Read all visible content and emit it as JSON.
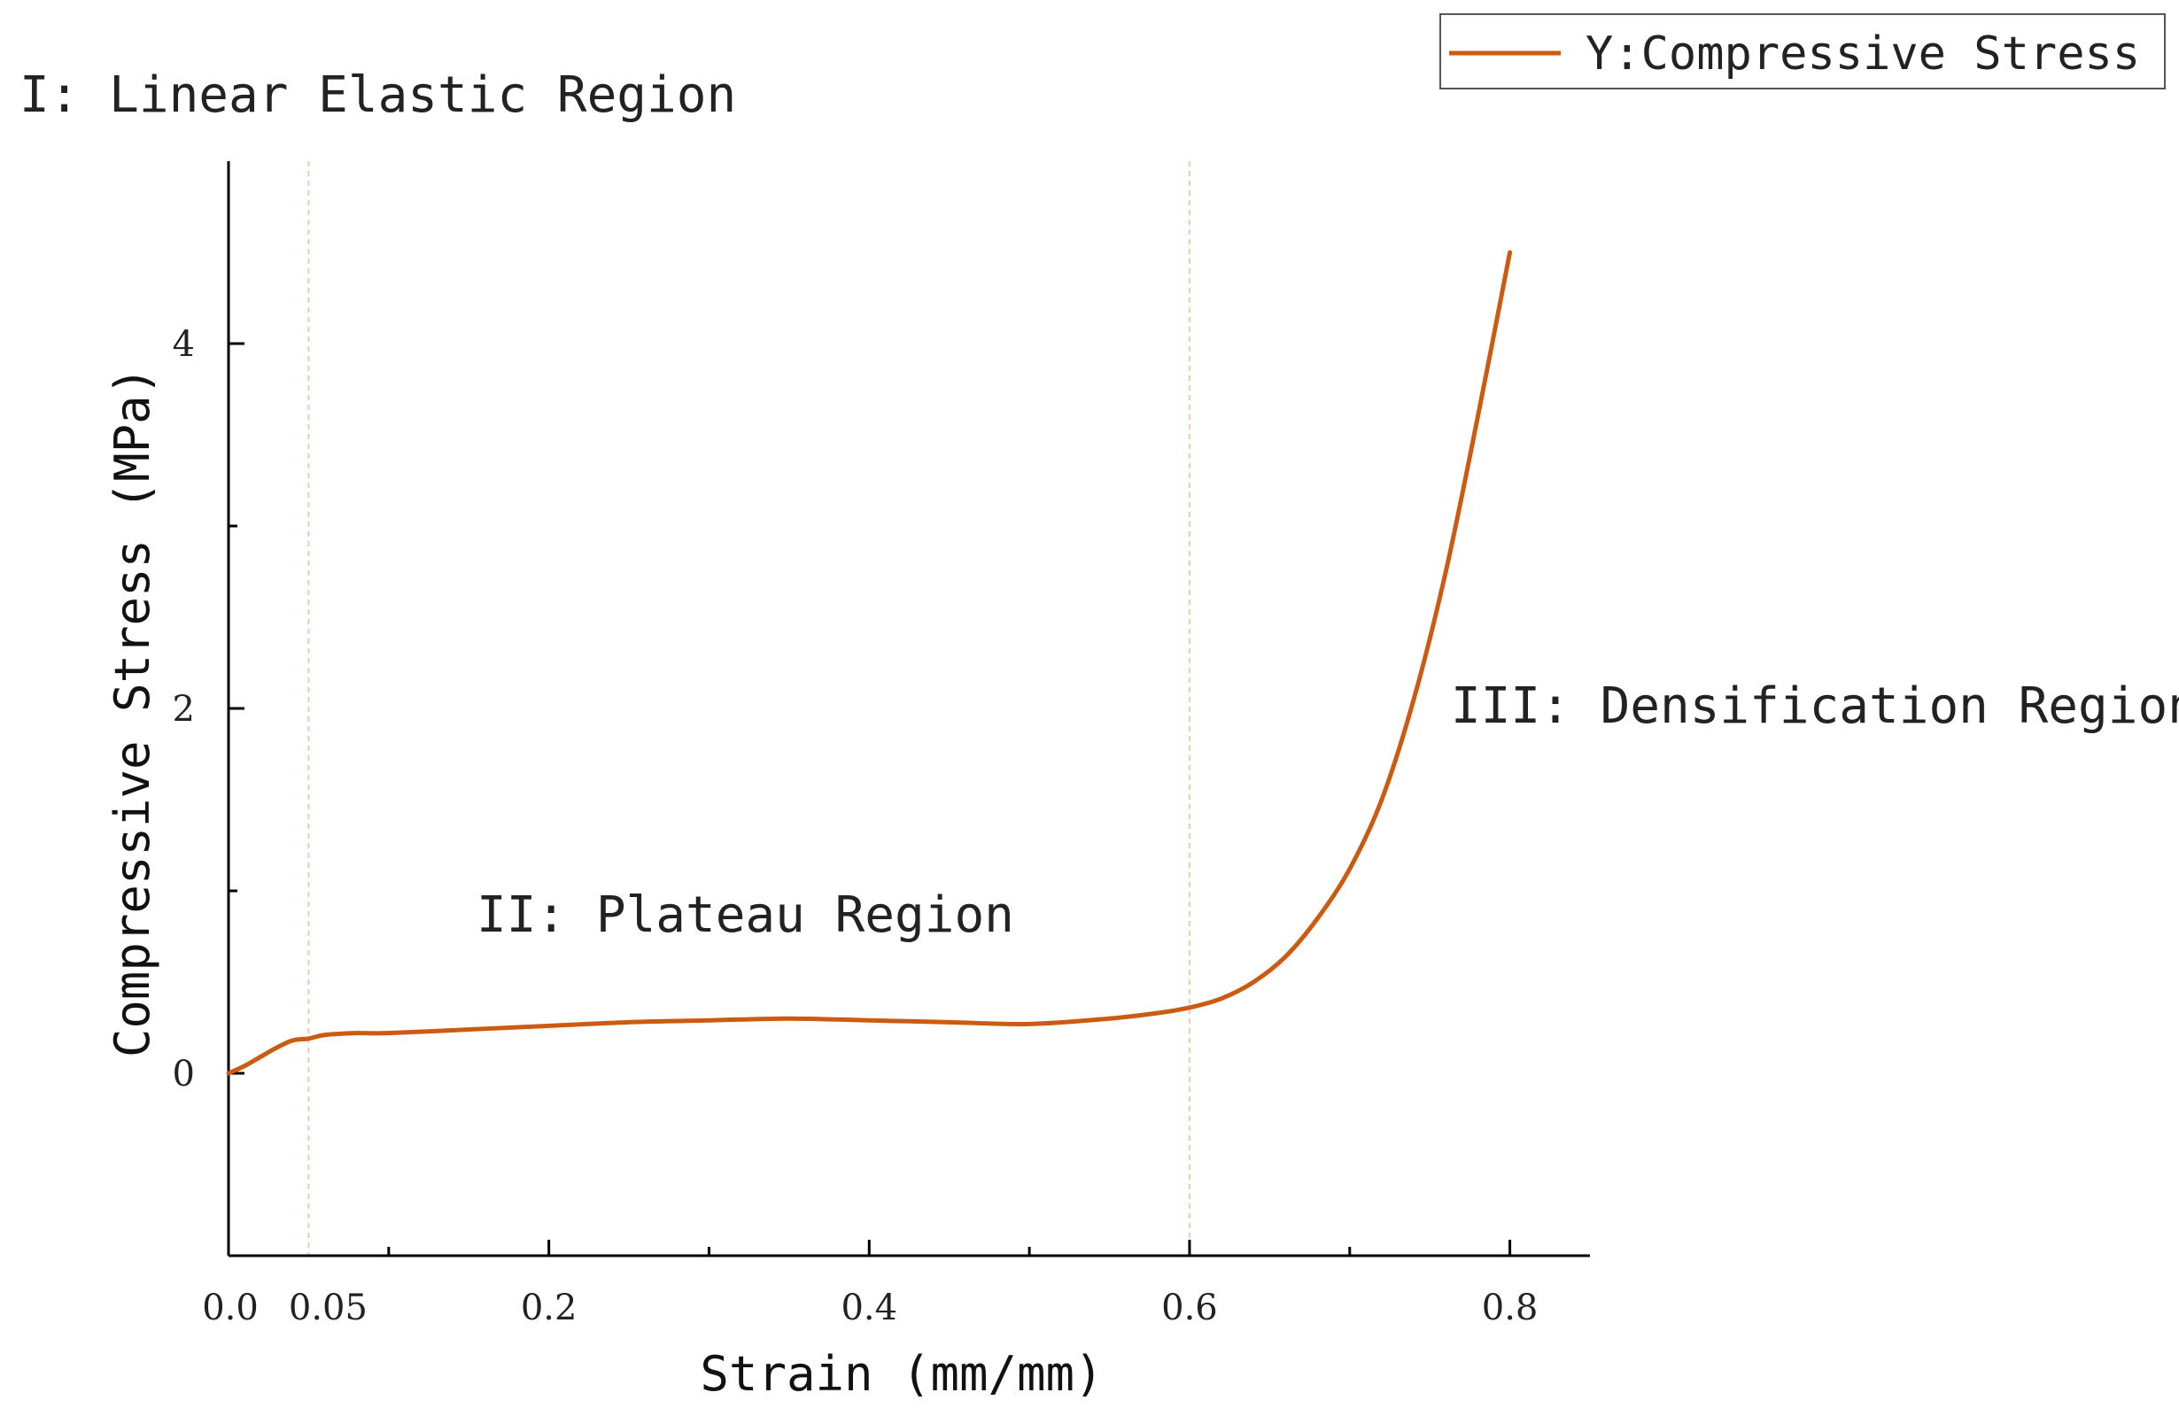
{
  "chart_data": {
    "type": "line",
    "xlabel": "Strain (mm/mm)",
    "ylabel": "Compressive Stress (MPa)",
    "xlim": [
      0,
      0.85
    ],
    "ylim": [
      -1,
      5
    ],
    "grid": false,
    "legend_position": "top-right",
    "x_ticks": [
      {
        "value": 0.0,
        "label": "0.0"
      },
      {
        "value": 0.05,
        "label": "0.05",
        "highlight": true
      },
      {
        "value": 0.2,
        "label": "0.2"
      },
      {
        "value": 0.4,
        "label": "0.4"
      },
      {
        "value": 0.6,
        "label": "0.6"
      },
      {
        "value": 0.8,
        "label": "0.8"
      }
    ],
    "x_minor_ticks": [
      0.1,
      0.3,
      0.5,
      0.7
    ],
    "y_ticks": [
      {
        "value": 0,
        "label": "0"
      },
      {
        "value": 2,
        "label": "2"
      },
      {
        "value": 4,
        "label": "4"
      }
    ],
    "y_minor_ticks": [
      -1,
      1,
      3
    ],
    "reference_lines": [
      {
        "x": 0.05,
        "style": "dashed",
        "color": "#f5c8a8"
      },
      {
        "x": 0.6,
        "style": "dashed",
        "color": "#f5c8a8"
      }
    ],
    "series": [
      {
        "name": "Y:Compressive Stress",
        "color": "#cc5a10",
        "x": [
          0,
          0.01,
          0.02,
          0.03,
          0.04,
          0.05,
          0.06,
          0.08,
          0.1,
          0.15,
          0.2,
          0.25,
          0.3,
          0.35,
          0.4,
          0.45,
          0.5,
          0.55,
          0.58,
          0.6,
          0.62,
          0.64,
          0.66,
          0.68,
          0.7,
          0.72,
          0.74,
          0.76,
          0.78,
          0.8
        ],
        "y": [
          0,
          0.04,
          0.09,
          0.14,
          0.18,
          0.19,
          0.21,
          0.22,
          0.22,
          0.24,
          0.26,
          0.28,
          0.29,
          0.3,
          0.29,
          0.28,
          0.27,
          0.3,
          0.33,
          0.36,
          0.41,
          0.5,
          0.64,
          0.85,
          1.12,
          1.5,
          2.05,
          2.75,
          3.6,
          4.5
        ]
      }
    ],
    "annotations": [
      {
        "text": "I: Linear Elastic Region"
      },
      {
        "text": "II: Plateau Region"
      },
      {
        "text": "III: Densification Region"
      }
    ]
  }
}
